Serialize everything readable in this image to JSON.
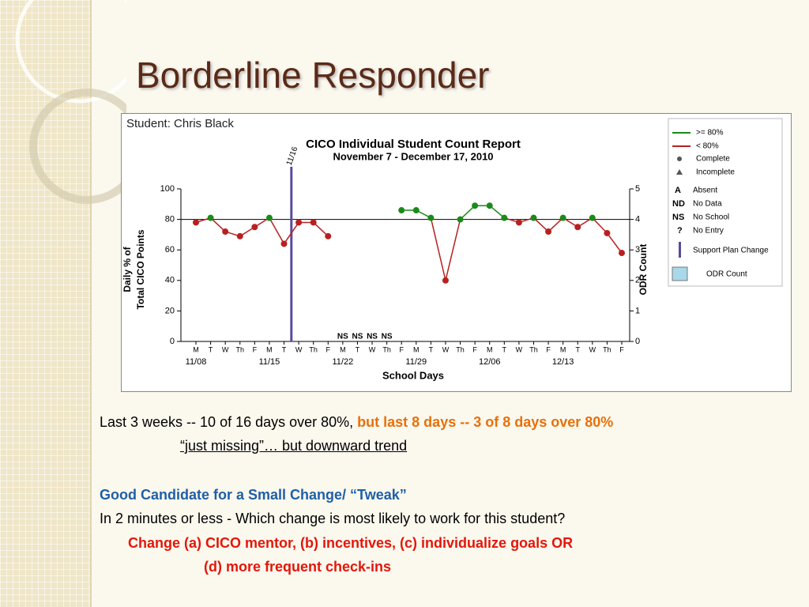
{
  "slide_title": "Borderline Responder",
  "chart_data": {
    "type": "line",
    "student": "Student: Chris Black",
    "title": "CICO Individual Student Count Report",
    "subtitle": "November 7 - December 17, 2010",
    "ylabel": [
      "Daily % of",
      "Total CICO Points"
    ],
    "y2label": "ODR Count",
    "xlabel": "School Days",
    "categories": [
      "M",
      "T",
      "W",
      "Th",
      "F",
      "M",
      "T",
      "W",
      "Th",
      "F",
      "M",
      "T",
      "W",
      "Th",
      "F",
      "M",
      "T",
      "W",
      "Th",
      "F",
      "M",
      "T",
      "W",
      "Th",
      "F",
      "M",
      "T",
      "W",
      "Th",
      "F"
    ],
    "week_labels": [
      "11/08",
      "11/15",
      "11/22",
      "11/29",
      "12/06",
      "12/13"
    ],
    "series": [
      {
        "name": "Daily % of Total CICO Points",
        "values": [
          78,
          81,
          72,
          69,
          75,
          81,
          64,
          78,
          78,
          69,
          null,
          null,
          null,
          null,
          86,
          86,
          81,
          40,
          80,
          89,
          89,
          81,
          78,
          81,
          72,
          81,
          75,
          81,
          71,
          58
        ]
      }
    ],
    "status": [
      null,
      null,
      null,
      null,
      null,
      null,
      null,
      null,
      null,
      null,
      "NS",
      "NS",
      "NS",
      "NS",
      null,
      null,
      null,
      null,
      null,
      null,
      null,
      null,
      null,
      null,
      null,
      null,
      null,
      null,
      null,
      null
    ],
    "goal": 80,
    "colors": {
      "above": "#1a8a1a",
      "below": "#b82020",
      "goal_line": "#000000",
      "plan_change": "#5a4a9a"
    },
    "support_plan_change": {
      "index": 6,
      "label": "11/16"
    },
    "ylim": [
      0,
      100
    ],
    "yticks": [
      0,
      20,
      40,
      60,
      80,
      100
    ],
    "y2lim": [
      0,
      5
    ],
    "y2ticks": [
      0,
      1,
      2,
      3,
      4,
      5
    ],
    "legend": [
      ">= 80%",
      "< 80%",
      "Complete",
      "Incomplete",
      {
        "key": "A",
        "label": "Absent"
      },
      {
        "key": "ND",
        "label": "No Data"
      },
      {
        "key": "NS",
        "label": "No School"
      },
      {
        "key": "?",
        "label": "No Entry"
      },
      "Support Plan Change",
      "ODR Count"
    ]
  },
  "body": {
    "line1": [
      "Last 3 weeks -- 10 of 16 days over 80%, ",
      "but last 8 days -- 3 of 8 days over 80%"
    ],
    "line2": "“just missing”… but downward trend",
    "line3": "Good Candidate for a Small Change/ “Tweak”",
    "line4": "In 2 minutes or less - Which change is most likely to work for this student?",
    "line5": "Change (a) CICO mentor,  (b) incentives, (c) individualize goals OR",
    "line6": "(d) more frequent check-ins"
  }
}
